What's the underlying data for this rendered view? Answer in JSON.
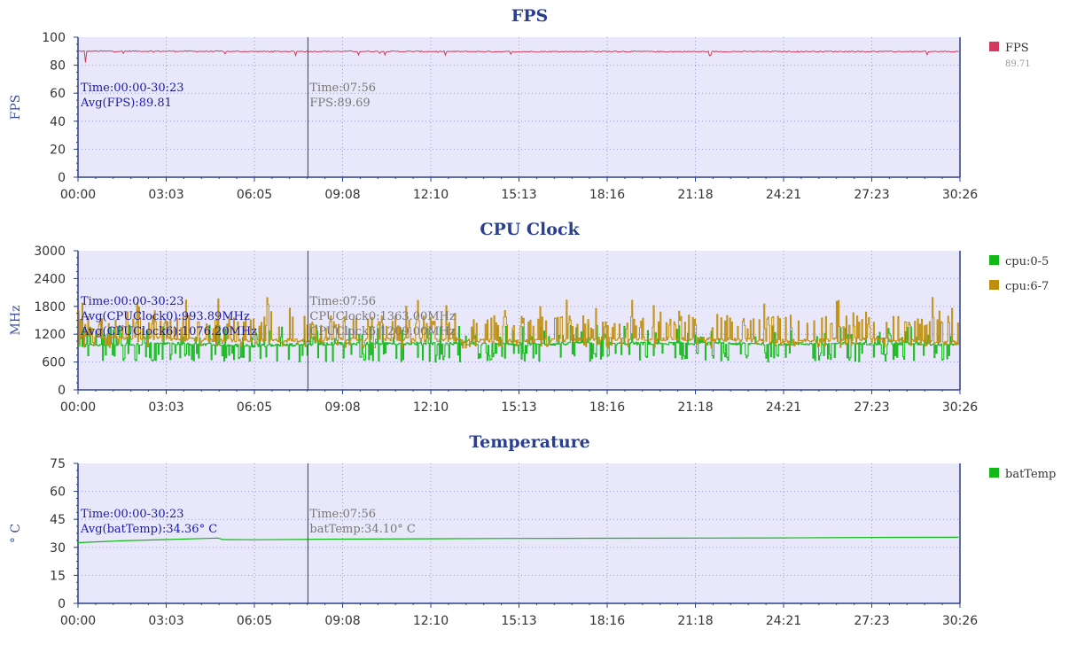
{
  "colors": {
    "plot_bg": "#e8e8fa",
    "axis": "#2a3f8f",
    "grid": "#9a9ac8",
    "fps": "#d23a5c",
    "cpu0": "#12b81a",
    "cpu6": "#c08e0e",
    "batTemp": "#12b81a"
  },
  "x_ticks": [
    "00:00",
    "03:03",
    "06:05",
    "09:08",
    "12:10",
    "15:13",
    "18:16",
    "21:18",
    "24:21",
    "27:23",
    "30:26"
  ],
  "cursor": {
    "time": "07:56"
  },
  "fps_panel": {
    "title": "FPS",
    "ylabel": "FPS",
    "y_ticks": [
      "0",
      "20",
      "40",
      "60",
      "80",
      "100"
    ],
    "avg_lines": [
      "Time:00:00-30:23",
      "Avg(FPS):89.81"
    ],
    "cur_lines": [
      "Time:07:56",
      "FPS:89.69"
    ],
    "legend": [
      {
        "name": "FPS",
        "value": "89.71",
        "color": "#d23a5c"
      }
    ]
  },
  "cpu_panel": {
    "title": "CPU Clock",
    "ylabel": "MHz",
    "y_ticks": [
      "0",
      "600",
      "1200",
      "1800",
      "2400",
      "3000"
    ],
    "avg_lines": [
      "Time:00:00-30:23",
      "Avg(CPUClock0):993.89MHz",
      "Avg(CPUClock6):1076.20MHz"
    ],
    "cur_lines": [
      "Time:07:56",
      "CPUClock0:1363.00MHz",
      "CPUClock6:1209.00MHz"
    ],
    "legend": [
      {
        "name": "cpu:0-5",
        "color": "#12b81a"
      },
      {
        "name": "cpu:6-7",
        "color": "#c08e0e"
      }
    ]
  },
  "temp_panel": {
    "title": "Temperature",
    "ylabel": "° C",
    "y_ticks": [
      "0",
      "15",
      "30",
      "45",
      "60",
      "75"
    ],
    "avg_lines": [
      "Time:00:00-30:23",
      "Avg(batTemp):34.36° C"
    ],
    "cur_lines": [
      "Time:07:56",
      "batTemp:34.10° C"
    ],
    "legend": [
      {
        "name": "batTemp",
        "color": "#12b81a"
      }
    ]
  },
  "chart_data": [
    {
      "type": "line",
      "title": "FPS",
      "xlabel": "",
      "ylabel": "FPS",
      "xlim": [
        "00:00",
        "30:26"
      ],
      "ylim": [
        0,
        100
      ],
      "grid": true,
      "legend_position": "right",
      "x": [
        "00:00",
        "03:03",
        "06:05",
        "09:08",
        "12:10",
        "15:13",
        "18:16",
        "21:18",
        "24:21",
        "27:23",
        "30:23"
      ],
      "series": [
        {
          "name": "FPS",
          "values": [
            90,
            90,
            89.8,
            89.9,
            89.8,
            89.7,
            89.8,
            89.7,
            89.8,
            89.8,
            89.7
          ]
        }
      ],
      "annotations": [
        "Avg(FPS):89.81",
        "FPS:89.69"
      ]
    },
    {
      "type": "line",
      "title": "CPU Clock",
      "xlabel": "",
      "ylabel": "MHz",
      "xlim": [
        "00:00",
        "30:26"
      ],
      "ylim": [
        0,
        3000
      ],
      "grid": true,
      "legend_position": "right",
      "x": [
        "00:00",
        "03:03",
        "06:05",
        "09:08",
        "12:10",
        "15:13",
        "18:16",
        "21:18",
        "24:21",
        "27:23",
        "30:23"
      ],
      "series": [
        {
          "name": "cpu:0-5",
          "values": [
            950,
            1000,
            950,
            1000,
            1000,
            980,
            1000,
            1000,
            990,
            1000,
            980
          ]
        },
        {
          "name": "cpu:6-7",
          "values": [
            1150,
            1100,
            1050,
            1100,
            1080,
            1050,
            1100,
            1100,
            1050,
            1100,
            1000
          ]
        }
      ],
      "annotations": [
        "Avg(CPUClock0):993.89MHz",
        "Avg(CPUClock6):1076.20MHz"
      ]
    },
    {
      "type": "line",
      "title": "Temperature",
      "xlabel": "",
      "ylabel": "° C",
      "xlim": [
        "00:00",
        "30:26"
      ],
      "ylim": [
        0,
        75
      ],
      "grid": true,
      "legend_position": "right",
      "x": [
        "00:00",
        "01:30",
        "03:03",
        "04:50",
        "05:00",
        "06:05",
        "09:08",
        "12:10",
        "15:13",
        "18:16",
        "21:18",
        "24:21",
        "27:23",
        "30:23"
      ],
      "series": [
        {
          "name": "batTemp",
          "values": [
            32.5,
            33.5,
            34.2,
            35.0,
            34.2,
            34.1,
            34.4,
            34.6,
            34.8,
            34.9,
            35.0,
            35.1,
            35.3,
            35.4
          ]
        }
      ],
      "annotations": [
        "Avg(batTemp):34.36° C",
        "batTemp:34.10° C"
      ]
    }
  ]
}
